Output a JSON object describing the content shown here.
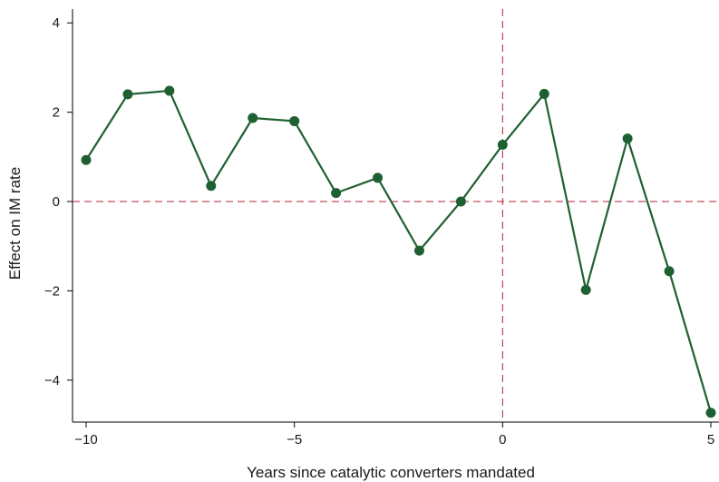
{
  "chart_data": {
    "type": "line",
    "title": "",
    "xlabel": "Years since catalytic converters mandated",
    "ylabel": "Effect on IM rate",
    "xlim": [
      -10,
      5
    ],
    "ylim": [
      -4.9,
      4.2
    ],
    "x_ticks": [
      {
        "value": -10,
        "label": "−10"
      },
      {
        "value": -5,
        "label": "−5"
      },
      {
        "value": 0,
        "label": "0"
      },
      {
        "value": 5,
        "label": "5"
      }
    ],
    "y_ticks": [
      {
        "value": 4,
        "label": "4"
      },
      {
        "value": 2,
        "label": "2"
      },
      {
        "value": 0,
        "label": "0"
      },
      {
        "value": -2,
        "label": "−2"
      },
      {
        "value": -4,
        "label": "−4"
      }
    ],
    "reference_lines": {
      "horizontal": 0,
      "vertical": 0,
      "style": "dashed",
      "color": "#b0203a"
    },
    "grid": false,
    "legend": "none",
    "series": [
      {
        "color": "#1f6032",
        "x": [
          -10,
          -9,
          -8,
          -7,
          -6,
          -5,
          -4,
          -3,
          -2,
          -1,
          0,
          1,
          2,
          3,
          4,
          5
        ],
        "y": [
          0.93,
          2.4,
          2.48,
          0.35,
          1.87,
          1.8,
          0.19,
          0.53,
          -1.1,
          0.0,
          1.27,
          2.41,
          -1.98,
          1.41,
          -1.56,
          -4.73
        ]
      }
    ]
  }
}
